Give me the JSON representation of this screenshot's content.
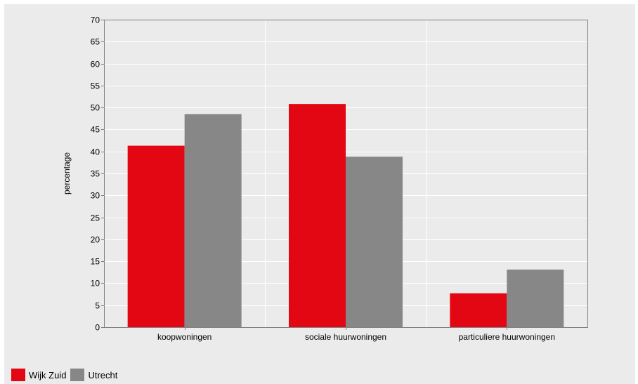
{
  "colors": {
    "background": "#ebebeb",
    "plot_background": "#ebebeb",
    "gridline": "#ffffff",
    "wijk_zuid": "#e30613",
    "utrecht": "#878787"
  },
  "chart_data": {
    "type": "bar",
    "title": "",
    "xlabel": "",
    "ylabel": "percentage",
    "ylim": [
      0,
      70
    ],
    "yticks": [
      0,
      5,
      10,
      15,
      20,
      25,
      30,
      35,
      40,
      45,
      50,
      55,
      60,
      65,
      70
    ],
    "categories": [
      "koopwoningen",
      "sociale huurwoningen",
      "particuliere huurwoningen"
    ],
    "series": [
      {
        "name": "Wijk Zuid",
        "color": "#e30613",
        "values": [
          41.3,
          50.8,
          7.7
        ]
      },
      {
        "name": "Utrecht",
        "color": "#878787",
        "values": [
          48.5,
          38.8,
          13.1
        ]
      }
    ],
    "grid": true,
    "legend": "bottom-left"
  }
}
